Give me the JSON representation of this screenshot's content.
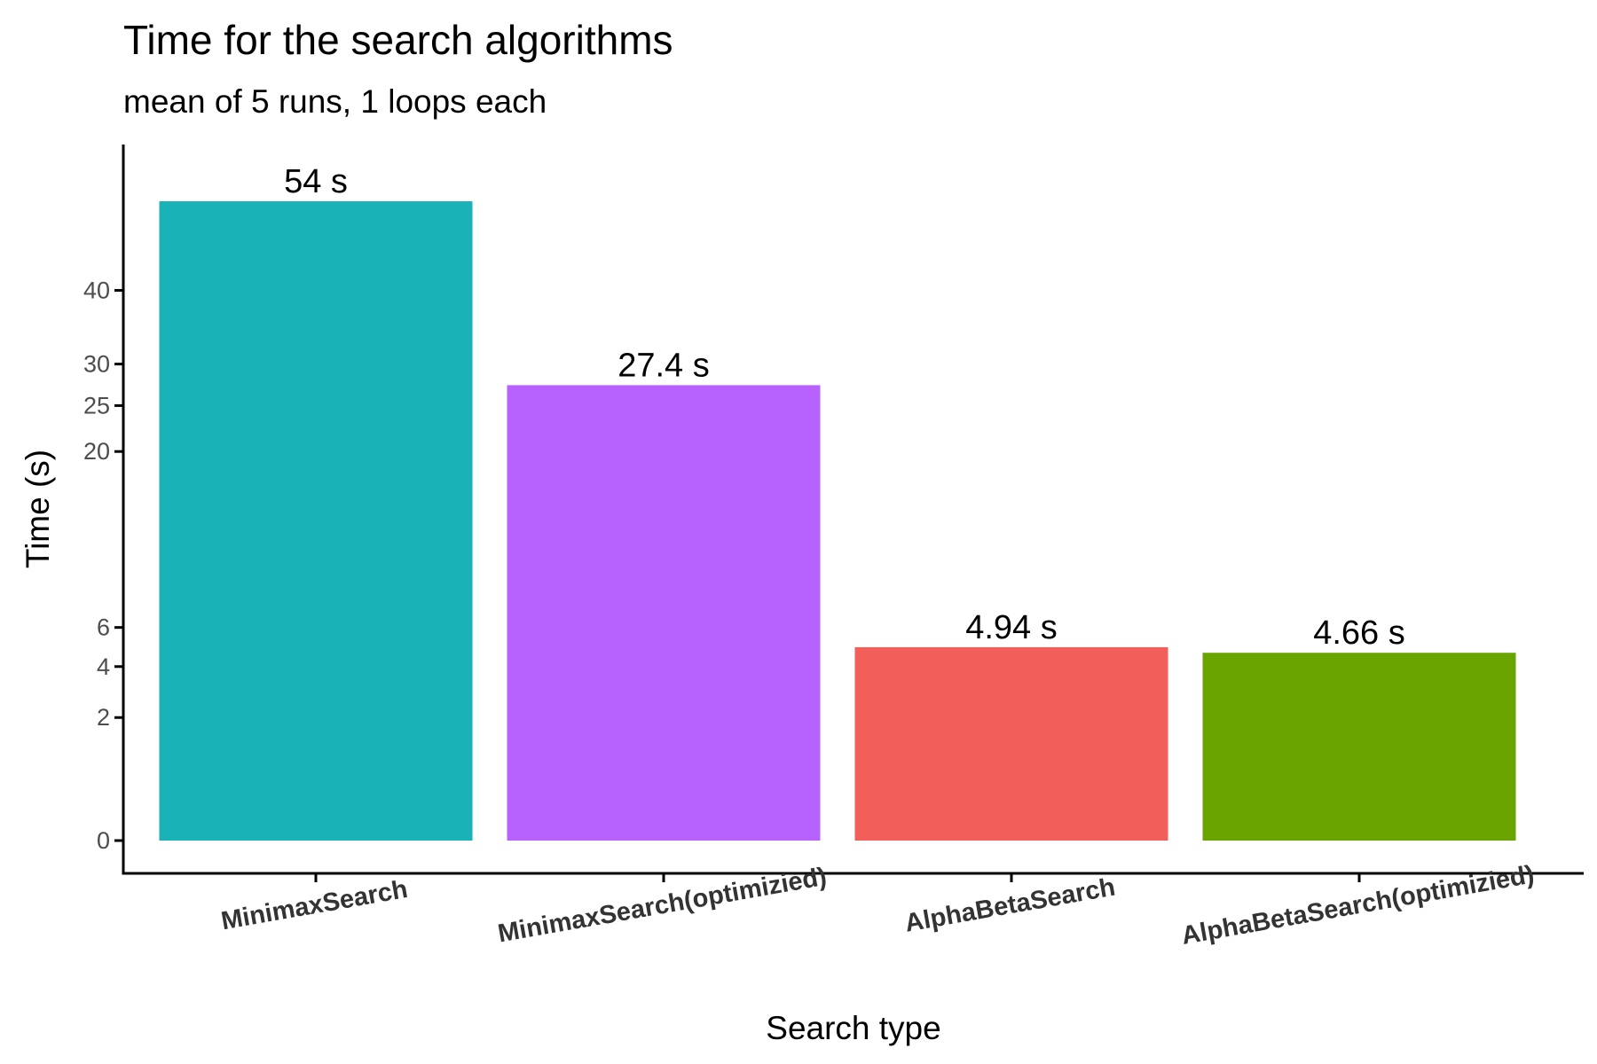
{
  "chart_data": {
    "type": "bar",
    "title": "Time for the search algorithms",
    "subtitle": "mean of 5 runs, 1 loops each",
    "xlabel": "Search type",
    "ylabel": "Time (s)",
    "y_scale": "square root",
    "grid": false,
    "legend": "none",
    "categories": [
      "MinimaxSearch",
      "MinimaxSearch(optimizied)",
      "AlphaBetaSearch",
      "AlphaBetaSearch(optimizied)"
    ],
    "values": [
      54,
      27.4,
      4.94,
      4.66
    ],
    "data_labels": [
      "54 s",
      "27.4 s",
      "4.94 s",
      "4.66 s"
    ],
    "colors": [
      "#19b3b7",
      "#b762ff",
      "#f25f5b",
      "#6aa400"
    ],
    "yticks": [
      0,
      2,
      4,
      6,
      20,
      25,
      30,
      40
    ],
    "ylim": [
      0,
      54
    ]
  }
}
